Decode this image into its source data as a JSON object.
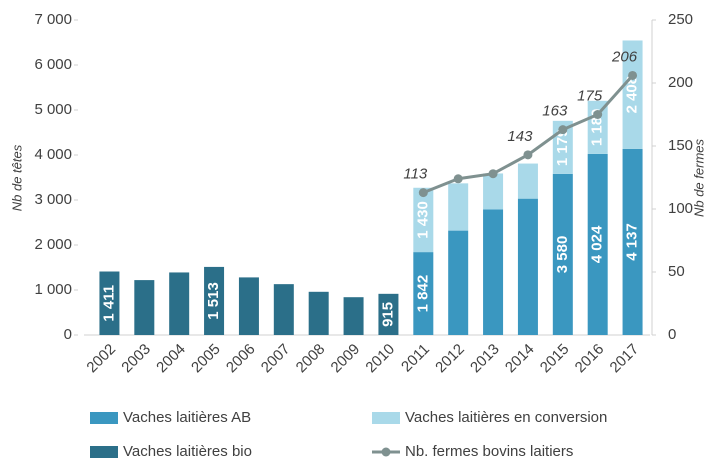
{
  "chart_data": {
    "type": "bar",
    "categories": [
      "2002",
      "2003",
      "2004",
      "2005",
      "2006",
      "2007",
      "2008",
      "2009",
      "2010",
      "2011",
      "2012",
      "2013",
      "2014",
      "2015",
      "2016",
      "2017"
    ],
    "series": [
      {
        "name": "Vaches laitières AB",
        "color": "#3a97c0",
        "values": [
          null,
          null,
          null,
          null,
          null,
          null,
          null,
          null,
          null,
          1842,
          2320,
          2790,
          3030,
          3580,
          4024,
          4137
        ],
        "value_labels": [
          null,
          null,
          null,
          null,
          null,
          null,
          null,
          null,
          null,
          "1 842",
          null,
          null,
          null,
          "3 580",
          "4 024",
          "4 137"
        ]
      },
      {
        "name": "Vaches laitières en conversion",
        "color": "#a9d9e9",
        "values": [
          null,
          null,
          null,
          null,
          null,
          null,
          null,
          null,
          null,
          1430,
          1050,
          800,
          780,
          1179,
          1180,
          2408
        ],
        "value_labels": [
          null,
          null,
          null,
          null,
          null,
          null,
          null,
          null,
          null,
          "1 430",
          null,
          null,
          null,
          "1 179",
          "1 180",
          "2 408"
        ]
      },
      {
        "name": "Vaches laitières bio",
        "color": "#2b6f89",
        "values": [
          1411,
          1220,
          1390,
          1513,
          1280,
          1130,
          960,
          840,
          915,
          null,
          null,
          null,
          null,
          null,
          null,
          null
        ],
        "value_labels": [
          "1 411",
          null,
          null,
          "1 513",
          null,
          null,
          null,
          null,
          "915",
          null,
          null,
          null,
          null,
          null,
          null,
          null
        ]
      },
      {
        "name": "Nb. fermes bovins laitiers",
        "color": "#7f9190",
        "type": "line",
        "axis": "y2",
        "values": [
          null,
          null,
          null,
          null,
          null,
          null,
          null,
          null,
          null,
          113,
          124,
          128,
          143,
          163,
          175,
          206
        ],
        "value_labels": [
          null,
          null,
          null,
          null,
          null,
          null,
          null,
          null,
          null,
          "113",
          null,
          null,
          "143",
          "163",
          "175",
          "206"
        ]
      }
    ],
    "ylabel": "Nb de têtes",
    "y2label": "Nb de fermes",
    "ylim": [
      0,
      7000
    ],
    "yticks": [
      0,
      {
        "value": 1000,
        "label": "1 000"
      },
      {
        "value": 2000,
        "label": "2 000"
      },
      {
        "value": 3000,
        "label": "3 000"
      },
      {
        "value": 4000,
        "label": "4 000"
      },
      {
        "value": 5000,
        "label": "5 000"
      },
      {
        "value": 6000,
        "label": "6 000"
      },
      {
        "value": 7000,
        "label": "7 000"
      }
    ],
    "y2lim": [
      0,
      250
    ],
    "y2ticks": [
      0,
      50,
      100,
      150,
      200,
      250
    ],
    "stacked": true,
    "legend": "bottom"
  }
}
